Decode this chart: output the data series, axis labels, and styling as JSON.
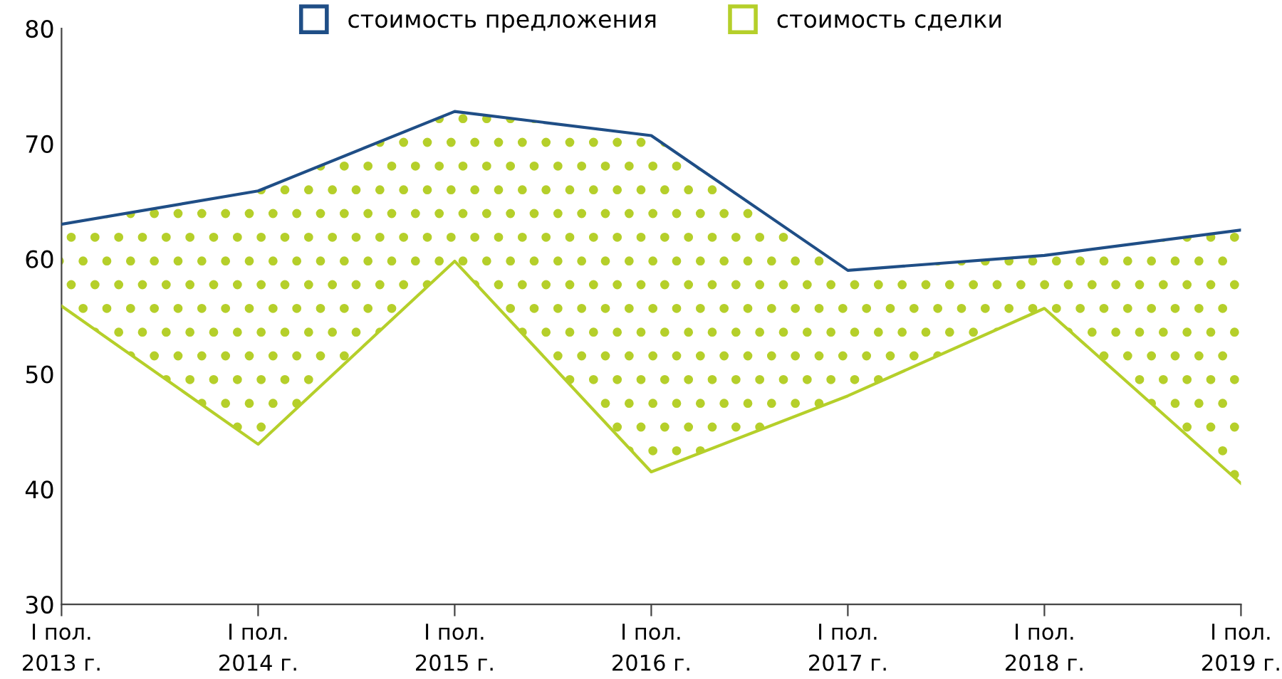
{
  "chart_data": {
    "type": "line",
    "categories": [
      "I пол.\n2013 г.",
      "I пол.\n2014 г.",
      "I пол.\n2015 г.",
      "I пол.\n2016 г.",
      "I пол.\n2017 г.",
      "I пол.\n2018 г.",
      "I пол.\n2019 г."
    ],
    "series": [
      {
        "name": "стоимость предложения",
        "color": "#1f4e86",
        "values": [
          63.0,
          65.9,
          72.8,
          70.7,
          59.0,
          60.3,
          62.5
        ]
      },
      {
        "name": "стоимость сделки",
        "color": "#b5cf2a",
        "values": [
          55.9,
          43.9,
          59.8,
          41.5,
          48.1,
          55.7,
          40.5
        ],
        "lower": [
          55.9,
          43.9,
          59.8,
          41.5,
          48.1,
          55.7,
          40.5
        ],
        "upper": [
          63.0,
          65.9,
          72.8,
          70.7,
          59.0,
          60.3,
          62.5
        ]
      }
    ],
    "ylim": [
      30,
      80
    ],
    "yticks": [
      30,
      40,
      50,
      60,
      70,
      80
    ],
    "grid": false,
    "legend": "top"
  }
}
